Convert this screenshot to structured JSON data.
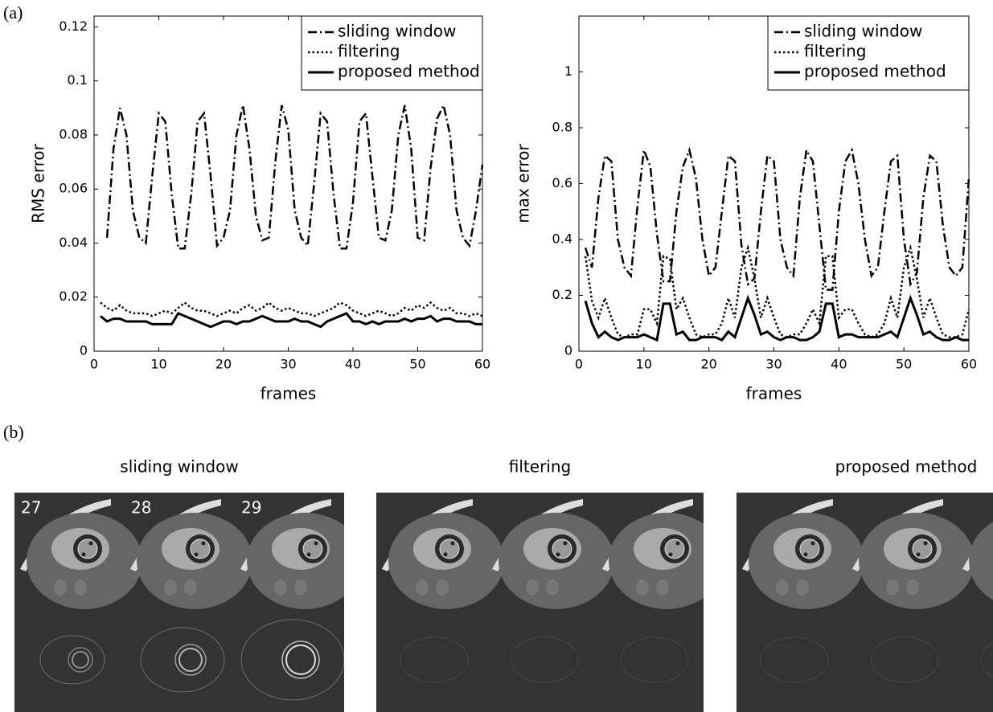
{
  "figure_labels": [
    "(a)",
    "(b)"
  ],
  "chart_data": [
    {
      "type": "line",
      "xlabel": "frames",
      "ylabel": "RMS error",
      "x": [
        1,
        2,
        3,
        4,
        5,
        6,
        7,
        8,
        9,
        10,
        11,
        12,
        13,
        14,
        15,
        16,
        17,
        18,
        19,
        20,
        21,
        22,
        23,
        24,
        25,
        26,
        27,
        28,
        29,
        30,
        31,
        32,
        33,
        34,
        35,
        36,
        37,
        38,
        39,
        40,
        41,
        42,
        43,
        44,
        45,
        46,
        47,
        48,
        49,
        50,
        51,
        52,
        53,
        54,
        55,
        56,
        57,
        58,
        59,
        60
      ],
      "xlim": [
        0,
        60
      ],
      "xticks": [
        0,
        10,
        20,
        30,
        40,
        50,
        60
      ],
      "ylim": [
        0,
        0.124
      ],
      "yticks": [
        0,
        0.02,
        0.04,
        0.06,
        0.08,
        0.1,
        0.12
      ],
      "legend": "upper right",
      "series": [
        {
          "name": "sliding window",
          "color": "#000000",
          "style": "dashdot",
          "values": [
            null,
            0.042,
            0.075,
            0.09,
            0.08,
            0.052,
            0.042,
            0.04,
            0.065,
            0.088,
            0.085,
            0.058,
            0.038,
            0.038,
            0.058,
            0.085,
            0.088,
            0.065,
            0.039,
            0.042,
            0.052,
            0.08,
            0.091,
            0.075,
            0.05,
            0.041,
            0.042,
            0.07,
            0.091,
            0.082,
            0.052,
            0.042,
            0.039,
            0.062,
            0.088,
            0.085,
            0.058,
            0.038,
            0.038,
            0.055,
            0.085,
            0.088,
            0.065,
            0.042,
            0.041,
            0.052,
            0.08,
            0.091,
            0.075,
            0.042,
            0.041,
            0.068,
            0.086,
            0.091,
            0.08,
            0.052,
            0.042,
            0.039,
            0.052,
            0.069
          ]
        },
        {
          "name": "filtering",
          "color": "#000000",
          "style": "dotted",
          "values": [
            0.018,
            0.016,
            0.015,
            0.017,
            0.015,
            0.014,
            0.014,
            0.014,
            0.013,
            0.014,
            0.015,
            0.014,
            0.016,
            0.018,
            0.016,
            0.015,
            0.015,
            0.014,
            0.013,
            0.014,
            0.015,
            0.014,
            0.016,
            0.017,
            0.015,
            0.016,
            0.018,
            0.016,
            0.015,
            0.016,
            0.015,
            0.014,
            0.014,
            0.013,
            0.014,
            0.015,
            0.016,
            0.018,
            0.017,
            0.015,
            0.014,
            0.013,
            0.014,
            0.015,
            0.014,
            0.013,
            0.014,
            0.016,
            0.015,
            0.017,
            0.016,
            0.018,
            0.016,
            0.015,
            0.016,
            0.014,
            0.014,
            0.013,
            0.014,
            0.013
          ]
        },
        {
          "name": "proposed method",
          "color": "#000000",
          "style": "solid",
          "values": [
            0.013,
            0.011,
            0.012,
            0.012,
            0.011,
            0.011,
            0.011,
            0.011,
            0.01,
            0.01,
            0.01,
            0.01,
            0.014,
            0.013,
            0.012,
            0.011,
            0.01,
            0.009,
            0.01,
            0.011,
            0.011,
            0.01,
            0.011,
            0.011,
            0.012,
            0.013,
            0.012,
            0.011,
            0.011,
            0.011,
            0.012,
            0.011,
            0.011,
            0.01,
            0.009,
            0.011,
            0.012,
            0.013,
            0.014,
            0.011,
            0.011,
            0.01,
            0.011,
            0.01,
            0.011,
            0.011,
            0.011,
            0.012,
            0.011,
            0.012,
            0.012,
            0.013,
            0.011,
            0.012,
            0.012,
            0.011,
            0.011,
            0.011,
            0.01,
            0.01
          ]
        }
      ]
    },
    {
      "type": "line",
      "xlabel": "frames",
      "ylabel": "max error",
      "x": [
        1,
        2,
        3,
        4,
        5,
        6,
        7,
        8,
        9,
        10,
        11,
        12,
        13,
        14,
        15,
        16,
        17,
        18,
        19,
        20,
        21,
        22,
        23,
        24,
        25,
        26,
        27,
        28,
        29,
        30,
        31,
        32,
        33,
        34,
        35,
        36,
        37,
        38,
        39,
        40,
        41,
        42,
        43,
        44,
        45,
        46,
        47,
        48,
        49,
        50,
        51,
        52,
        53,
        54,
        55,
        56,
        57,
        58,
        59,
        60
      ],
      "xlim": [
        0,
        60
      ],
      "xticks": [
        0,
        10,
        20,
        30,
        40,
        50,
        60
      ],
      "ylim": [
        0,
        1.2
      ],
      "yticks": [
        0,
        0.2,
        0.4,
        0.6,
        0.8,
        1
      ],
      "legend": "upper right",
      "series": [
        {
          "name": "sliding window",
          "color": "#000000",
          "style": "dashdot",
          "values": [
            0.37,
            0.3,
            0.55,
            0.7,
            0.68,
            0.4,
            0.3,
            0.27,
            0.52,
            0.72,
            0.66,
            0.42,
            0.25,
            0.25,
            0.5,
            0.66,
            0.72,
            0.62,
            0.4,
            0.27,
            0.3,
            0.5,
            0.7,
            0.68,
            0.38,
            0.24,
            0.26,
            0.5,
            0.7,
            0.68,
            0.4,
            0.3,
            0.27,
            0.55,
            0.72,
            0.68,
            0.45,
            0.22,
            0.22,
            0.5,
            0.68,
            0.72,
            0.6,
            0.4,
            0.27,
            0.3,
            0.5,
            0.68,
            0.7,
            0.4,
            0.24,
            0.28,
            0.55,
            0.7,
            0.68,
            0.45,
            0.3,
            0.27,
            0.3,
            0.62
          ]
        },
        {
          "name": "filtering",
          "color": "#000000",
          "style": "dotted",
          "values": [
            0.34,
            0.18,
            0.12,
            0.19,
            0.12,
            0.06,
            0.05,
            0.06,
            0.06,
            0.15,
            0.15,
            0.1,
            0.34,
            0.33,
            0.15,
            0.19,
            0.12,
            0.06,
            0.05,
            0.06,
            0.06,
            0.1,
            0.19,
            0.12,
            0.3,
            0.37,
            0.26,
            0.12,
            0.19,
            0.12,
            0.06,
            0.05,
            0.06,
            0.06,
            0.1,
            0.15,
            0.1,
            0.34,
            0.34,
            0.12,
            0.15,
            0.15,
            0.1,
            0.06,
            0.05,
            0.06,
            0.1,
            0.19,
            0.12,
            0.3,
            0.37,
            0.26,
            0.12,
            0.19,
            0.12,
            0.06,
            0.05,
            0.05,
            0.06,
            0.15
          ]
        },
        {
          "name": "proposed method",
          "color": "#000000",
          "style": "solid",
          "values": [
            0.18,
            0.1,
            0.05,
            0.07,
            0.05,
            0.04,
            0.05,
            0.05,
            0.05,
            0.06,
            0.05,
            0.04,
            0.17,
            0.17,
            0.06,
            0.07,
            0.04,
            0.04,
            0.05,
            0.05,
            0.05,
            0.04,
            0.07,
            0.05,
            0.12,
            0.19,
            0.13,
            0.06,
            0.07,
            0.05,
            0.04,
            0.05,
            0.05,
            0.04,
            0.04,
            0.05,
            0.07,
            0.17,
            0.17,
            0.05,
            0.06,
            0.06,
            0.05,
            0.05,
            0.05,
            0.05,
            0.06,
            0.07,
            0.05,
            0.12,
            0.19,
            0.13,
            0.06,
            0.07,
            0.05,
            0.04,
            0.04,
            0.05,
            0.04,
            0.04
          ]
        }
      ]
    }
  ],
  "panels": [
    {
      "title": "sliding window",
      "frames": [
        "27",
        "28",
        "29"
      ]
    },
    {
      "title": "filtering"
    },
    {
      "title": "proposed method"
    }
  ]
}
